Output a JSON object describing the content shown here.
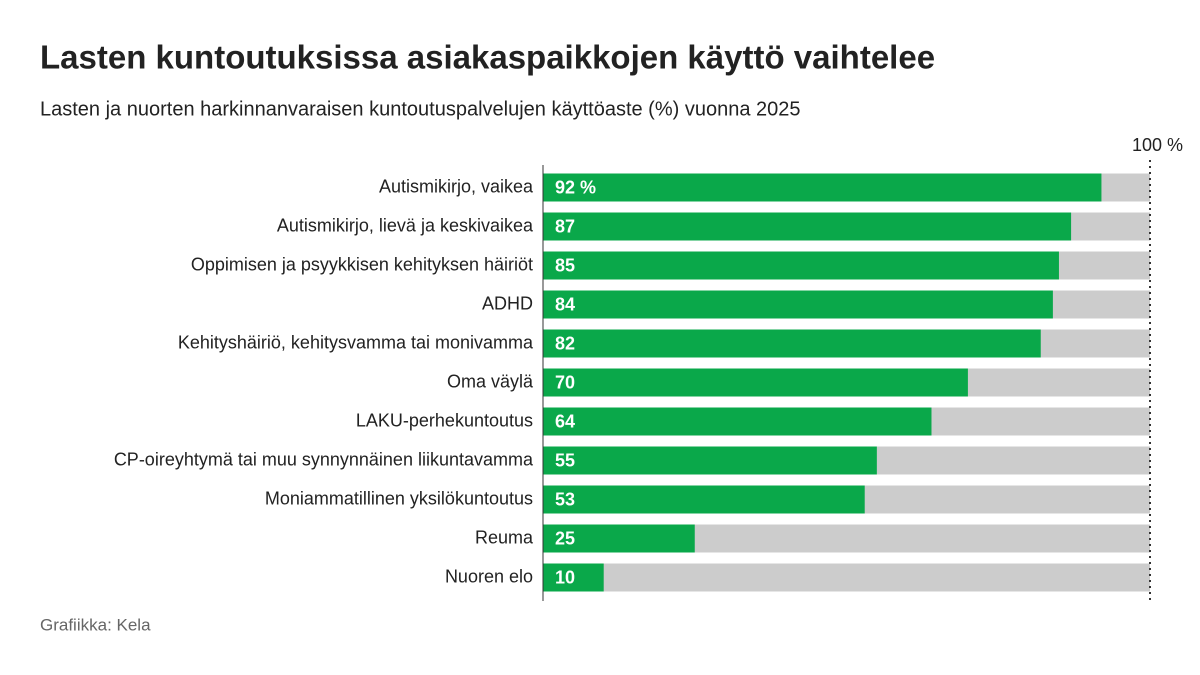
{
  "chart_data": {
    "type": "bar",
    "orientation": "horizontal",
    "title": "Lasten kuntoutuksissa asiakaspaikkojen käyttö vaihtelee",
    "subtitle": "Lasten ja nuorten harkinnanvaraisen kuntoutuspalvelujen käyttöaste (%) vuonna 2025",
    "source": "Grafiikka: Kela",
    "categories": [
      "Autismikirjo, vaikea",
      "Autismikirjo, lievä ja keskivaikea",
      "Oppimisen ja psyykkisen kehityksen häiriöt",
      "ADHD",
      "Kehityshäiriö, kehitysvamma tai monivamma",
      "Oma väylä",
      "LAKU-perhekuntoutus",
      "CP-oireyhtymä tai muu synnynnäinen liikuntavamma",
      "Moniammatillinen yksilökuntoutus",
      "Reuma",
      "Nuoren elo"
    ],
    "values": [
      92,
      87,
      85,
      84,
      82,
      70,
      64,
      55,
      53,
      25,
      10
    ],
    "value_labels": [
      "92 %",
      "87",
      "85",
      "84",
      "82",
      "70",
      "64",
      "55",
      "53",
      "25",
      "10"
    ],
    "color": "#0aa84a",
    "background_color": "#cccccc",
    "xlim": [
      0,
      100
    ],
    "xticks": [
      {
        "value": 100,
        "label": "100 %"
      }
    ]
  }
}
